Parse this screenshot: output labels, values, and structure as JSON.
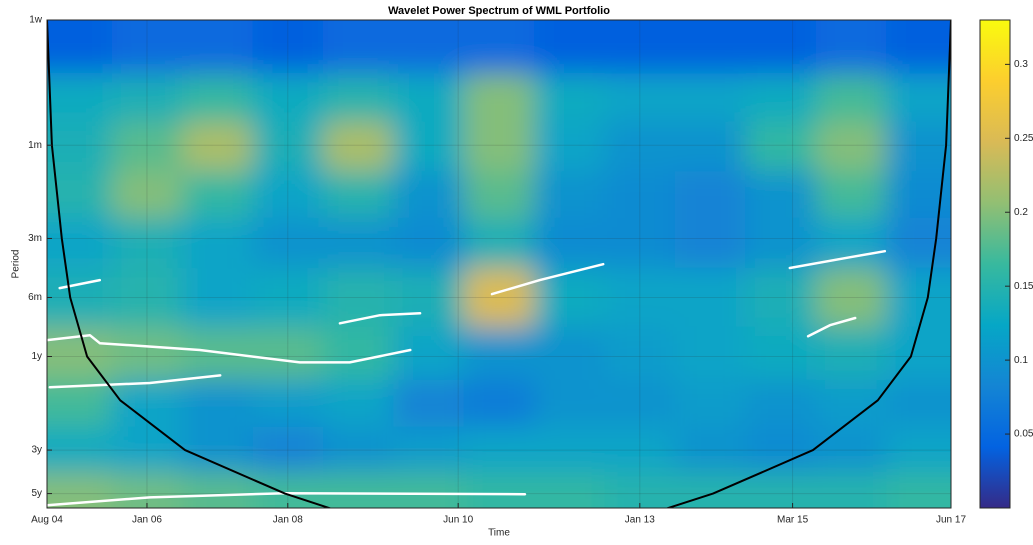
{
  "chart_data": {
    "type": "heatmap",
    "title": "Wavelet Power Spectrum of WML Portfolio",
    "xlabel": "Time",
    "ylabel": "Period",
    "xlim": [
      2004.58,
      2017.42
    ],
    "xticks": [
      {
        "value": 2004.58,
        "label": "Aug 04"
      },
      {
        "value": 2006.0,
        "label": "Jan 06"
      },
      {
        "value": 2008.0,
        "label": "Jan 08"
      },
      {
        "value": 2010.42,
        "label": "Jun 10"
      },
      {
        "value": 2013.0,
        "label": "Jan 13"
      },
      {
        "value": 2015.17,
        "label": "Mar 15"
      },
      {
        "value": 2017.42,
        "label": "Jun 17"
      }
    ],
    "ylim": [
      1,
      308
    ],
    "ylog": true,
    "y_reversed": true,
    "yticks": [
      {
        "value": 1,
        "label": "1w"
      },
      {
        "value": 4.35,
        "label": "1m"
      },
      {
        "value": 13,
        "label": "3m"
      },
      {
        "value": 26,
        "label": "6m"
      },
      {
        "value": 52,
        "label": "1y"
      },
      {
        "value": 156,
        "label": "3y"
      },
      {
        "value": 260,
        "label": "5y"
      }
    ],
    "grid": true,
    "x": [
      2005,
      2006,
      2007,
      2008,
      2009,
      2010,
      2011,
      2012,
      2013,
      2014,
      2015,
      2016,
      2017
    ],
    "y": [
      1.4,
      2.5,
      4.35,
      8,
      13,
      26,
      52,
      90,
      156,
      260
    ],
    "z": [
      [
        0.04,
        0.05,
        0.05,
        0.04,
        0.05,
        0.05,
        0.05,
        0.04,
        0.04,
        0.04,
        0.04,
        0.05,
        0.04
      ],
      [
        0.13,
        0.14,
        0.16,
        0.13,
        0.15,
        0.13,
        0.2,
        0.13,
        0.12,
        0.12,
        0.13,
        0.17,
        0.12
      ],
      [
        0.14,
        0.18,
        0.22,
        0.14,
        0.22,
        0.13,
        0.2,
        0.12,
        0.1,
        0.1,
        0.16,
        0.2,
        0.1
      ],
      [
        0.15,
        0.2,
        0.16,
        0.12,
        0.15,
        0.1,
        0.18,
        0.1,
        0.09,
        0.08,
        0.1,
        0.17,
        0.09
      ],
      [
        0.12,
        0.14,
        0.12,
        0.1,
        0.1,
        0.09,
        0.14,
        0.09,
        0.09,
        0.08,
        0.1,
        0.12,
        0.08
      ],
      [
        0.14,
        0.15,
        0.12,
        0.13,
        0.15,
        0.14,
        0.25,
        0.13,
        0.12,
        0.12,
        0.14,
        0.2,
        0.12
      ],
      [
        0.2,
        0.19,
        0.18,
        0.18,
        0.16,
        0.12,
        0.1,
        0.1,
        0.11,
        0.12,
        0.13,
        0.14,
        0.12
      ],
      [
        0.17,
        0.12,
        0.1,
        0.11,
        0.12,
        0.08,
        0.07,
        0.1,
        0.1,
        0.11,
        0.1,
        0.11,
        0.1
      ],
      [
        0.13,
        0.12,
        0.1,
        0.08,
        0.1,
        0.11,
        0.12,
        0.12,
        0.12,
        0.1,
        0.09,
        0.1,
        0.12
      ],
      [
        0.2,
        0.19,
        0.18,
        0.17,
        0.17,
        0.17,
        0.16,
        0.16,
        0.15,
        0.15,
        0.15,
        0.15,
        0.16
      ]
    ],
    "clim": [
      0,
      0.33
    ],
    "cticks": [
      0.05,
      0.1,
      0.15,
      0.2,
      0.25,
      0.3
    ],
    "colormap": [
      "#352a87",
      "#0363e1",
      "#1485d4",
      "#06a7c6",
      "#38b99e",
      "#92bf73",
      "#d9ba56",
      "#fcce2e",
      "#f9fb0e"
    ],
    "coi": {
      "color": "#000000",
      "x": [
        2004.58,
        2004.65,
        2004.79,
        2004.91,
        2005.15,
        2005.62,
        2006.54,
        2007.96,
        2008.6,
        null,
        2013.39,
        2014.04,
        2015.46,
        2016.38,
        2016.85,
        2017.09,
        2017.21,
        2017.35,
        2017.42
      ],
      "values": [
        1,
        4.35,
        13,
        26,
        52,
        87,
        156,
        260,
        309,
        null,
        309,
        260,
        156,
        87,
        52,
        26,
        13,
        4.35,
        1
      ]
    },
    "contours": {
      "color": "#ffffff",
      "lines": [
        {
          "x": [
            2004.58,
            2006.04,
            2007.96,
            2011.37
          ],
          "values": [
            298,
            272,
            259,
            262
          ]
        },
        {
          "x": [
            2004.58,
            2005.19,
            2005.33,
            2006.75,
            2008.17,
            2008.88,
            2009.74
          ],
          "values": [
            42.9,
            40.5,
            44.5,
            48.2,
            55.7,
            55.7,
            48.2
          ]
        },
        {
          "x": [
            2004.62,
            2006.04,
            2007.04
          ],
          "values": [
            74.6,
            71,
            64.9
          ]
        },
        {
          "x": [
            2010.9,
            2011.58,
            2012.48
          ],
          "values": [
            25,
            21.2,
            17.6
          ]
        },
        {
          "x": [
            2015.13,
            2015.99,
            2016.48
          ],
          "values": [
            18.4,
            16.2,
            15.1
          ]
        },
        {
          "x": [
            2015.39,
            2015.7,
            2016.06
          ],
          "values": [
            41,
            36,
            33.1
          ]
        },
        {
          "x": [
            2008.74,
            2009.31,
            2009.88
          ],
          "values": [
            35.2,
            32,
            31.3
          ]
        },
        {
          "x": [
            2004.76,
            2005.33
          ],
          "values": [
            23.3,
            21.2
          ]
        }
      ]
    }
  }
}
